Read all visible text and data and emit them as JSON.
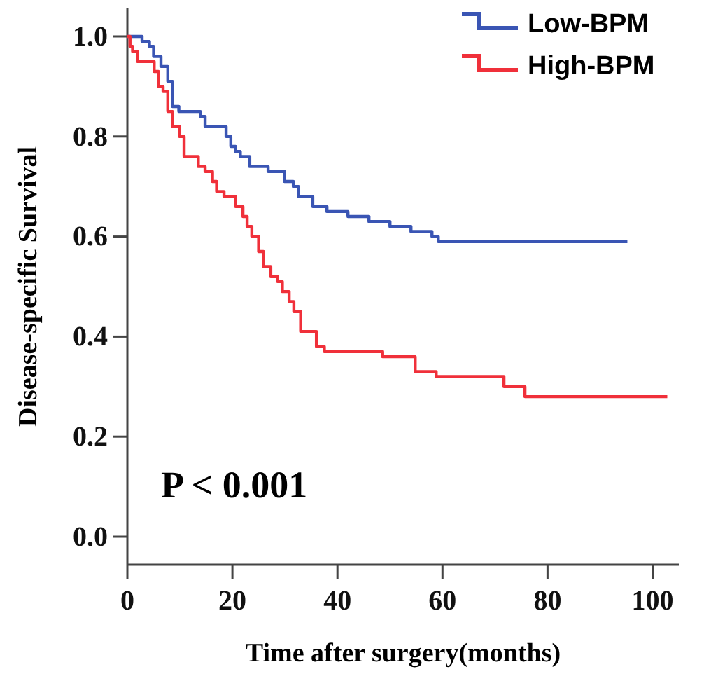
{
  "chart_data": {
    "type": "step",
    "xlabel": "Time after surgery(months)",
    "ylabel": "Disease-specific Survival",
    "xlim": [
      0,
      105
    ],
    "ylim": [
      -0.056,
      1.056
    ],
    "xticks": [
      0,
      20,
      40,
      60,
      80,
      100
    ],
    "yticks": [
      {
        "value": 0,
        "label": "0.0"
      },
      {
        "value": 0.2,
        "label": "0.2"
      },
      {
        "value": 0.4,
        "label": "0.4"
      },
      {
        "value": 0.6,
        "label": "0.6"
      },
      {
        "value": 0.8,
        "label": "0.8"
      },
      {
        "value": 1,
        "label": "1.0"
      }
    ],
    "grid": false,
    "legend": "top right",
    "annotations": [
      "P < 0.001"
    ],
    "series": [
      {
        "name": "Low-BPM",
        "color": "#3a55b4",
        "x": [
          0,
          2.8,
          4.2,
          5,
          6.4,
          7.7,
          8.6,
          9.8,
          11.7,
          13.9,
          14.8,
          18.8,
          19.7,
          20.6,
          21.5,
          23.3,
          26.8,
          29.9,
          31.6,
          32.6,
          35.3,
          38,
          42,
          46,
          50,
          54,
          58,
          59.2,
          95.2
        ],
        "values": [
          1,
          0.99,
          0.98,
          0.96,
          0.94,
          0.91,
          0.86,
          0.85,
          0.85,
          0.84,
          0.82,
          0.8,
          0.78,
          0.77,
          0.76,
          0.74,
          0.73,
          0.71,
          0.7,
          0.68,
          0.66,
          0.65,
          0.64,
          0.63,
          0.62,
          0.61,
          0.6,
          0.59,
          0.59
        ]
      },
      {
        "name": "High-BPM",
        "color": "#f0303a",
        "x": [
          0,
          0.5,
          1,
          1.9,
          3.7,
          5.1,
          5.9,
          6.8,
          7.7,
          8.6,
          9.9,
          10.8,
          13.5,
          14.8,
          16.2,
          17,
          18.4,
          20.6,
          22,
          22.8,
          23.7,
          25,
          25.9,
          27.3,
          28.6,
          29.5,
          30.8,
          31.7,
          33,
          36,
          37.5,
          48.6,
          54.8,
          58.8,
          71.7,
          75.7,
          102.8
        ],
        "values": [
          1,
          0.98,
          0.97,
          0.95,
          0.95,
          0.93,
          0.9,
          0.89,
          0.85,
          0.82,
          0.8,
          0.76,
          0.74,
          0.73,
          0.71,
          0.69,
          0.68,
          0.66,
          0.64,
          0.62,
          0.6,
          0.57,
          0.54,
          0.52,
          0.51,
          0.49,
          0.47,
          0.45,
          0.41,
          0.38,
          0.37,
          0.36,
          0.33,
          0.32,
          0.3,
          0.28,
          0.28
        ]
      }
    ]
  }
}
